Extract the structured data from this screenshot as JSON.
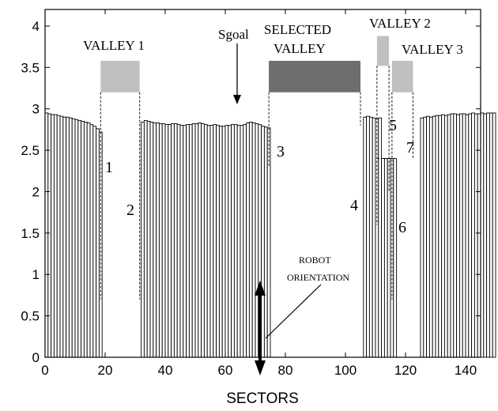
{
  "chart_data": {
    "type": "bar",
    "xlabel": "SECTORS",
    "ylabel": "",
    "title": "",
    "xlim": [
      0,
      145
    ],
    "ylim": [
      0,
      4.2
    ],
    "xticks": [
      0,
      20,
      40,
      60,
      80,
      100,
      120,
      140
    ],
    "yticks": [
      0,
      0.5,
      1,
      1.5,
      2,
      2.5,
      3,
      3.5,
      4
    ],
    "xtick_labels": [
      "0",
      "20",
      "40",
      "60",
      "80",
      "100",
      "120",
      "140"
    ],
    "ytick_labels": [
      "0",
      "0.5",
      "1",
      "1.5",
      "2",
      "2.5",
      "3",
      "3.5",
      "4"
    ],
    "grid": false,
    "sector_values": [
      2.95,
      2.94,
      2.93,
      2.93,
      2.92,
      2.91,
      2.9,
      2.9,
      2.89,
      2.88,
      2.87,
      2.86,
      2.85,
      2.84,
      2.83,
      2.81,
      2.79,
      2.76,
      2.72,
      0,
      0,
      0,
      0,
      0,
      0,
      0,
      0,
      0,
      0,
      0,
      0,
      0,
      2.84,
      2.86,
      2.85,
      2.84,
      2.83,
      2.83,
      2.82,
      2.82,
      2.81,
      2.81,
      2.82,
      2.82,
      2.81,
      2.8,
      2.8,
      2.81,
      2.81,
      2.82,
      2.82,
      2.83,
      2.82,
      2.81,
      2.8,
      2.8,
      2.81,
      2.8,
      2.79,
      2.79,
      2.8,
      2.8,
      2.81,
      2.81,
      2.8,
      2.8,
      2.81,
      2.83,
      2.84,
      2.83,
      2.82,
      2.81,
      2.79,
      2.78,
      2.77,
      0,
      0,
      0,
      0,
      0,
      0,
      0,
      0,
      0,
      0,
      0,
      0,
      0,
      0,
      0,
      0,
      0,
      0,
      0,
      0,
      0,
      0,
      0,
      0,
      0,
      0,
      0,
      0,
      0,
      0,
      0,
      2.9,
      2.91,
      2.9,
      2.89,
      2.88,
      2.89,
      2.4,
      2.4,
      2.4,
      2.4,
      2.4,
      0,
      0,
      0,
      0,
      0,
      0,
      0,
      0,
      2.89,
      2.9,
      2.91,
      2.9,
      2.91,
      2.92,
      2.92,
      2.93,
      2.92,
      2.93,
      2.94,
      2.94,
      2.93,
      2.94,
      2.94,
      2.93,
      2.94,
      2.95,
      2.94,
      2.94,
      2.95,
      2.94,
      2.95,
      2.95,
      2.95
    ],
    "valley_labels": [
      "VALLEY 1",
      "VALLEY 2",
      "VALLEY 3"
    ],
    "selected_valley_label": [
      "SELECTED",
      "VALLEY"
    ],
    "valleys": [
      {
        "name": "VALLEY 1",
        "x_start": 18.5,
        "x_end": 31.5,
        "y_low": 3.2,
        "y_high": 3.58,
        "color": "#c0c0c0"
      },
      {
        "name": "SELECTED VALLEY",
        "x_start": 74.5,
        "x_end": 105,
        "y_low": 3.2,
        "y_high": 3.58,
        "color": "#6e6e6e"
      },
      {
        "name": "VALLEY 2",
        "x_start": 110.5,
        "x_end": 114.5,
        "y_low": 3.52,
        "y_high": 3.88,
        "color": "#c0c0c0"
      },
      {
        "name": "VALLEY 3",
        "x_start": 115.5,
        "x_end": 122.5,
        "y_low": 3.2,
        "y_high": 3.58,
        "color": "#c0c0c0"
      }
    ],
    "edge_labels": [
      "1",
      "2",
      "3",
      "4",
      "5",
      "6",
      "7"
    ],
    "goal_label": "Sgoal",
    "goal_sector": 62.5,
    "robot_orientation_label": [
      "ROBOT",
      "ORIENTATION"
    ],
    "robot_orientation_sector": 70
  },
  "colors": {
    "bar_stroke": "#000000",
    "valley_light": "#c0c0c0",
    "valley_dark": "#6e6e6e"
  }
}
